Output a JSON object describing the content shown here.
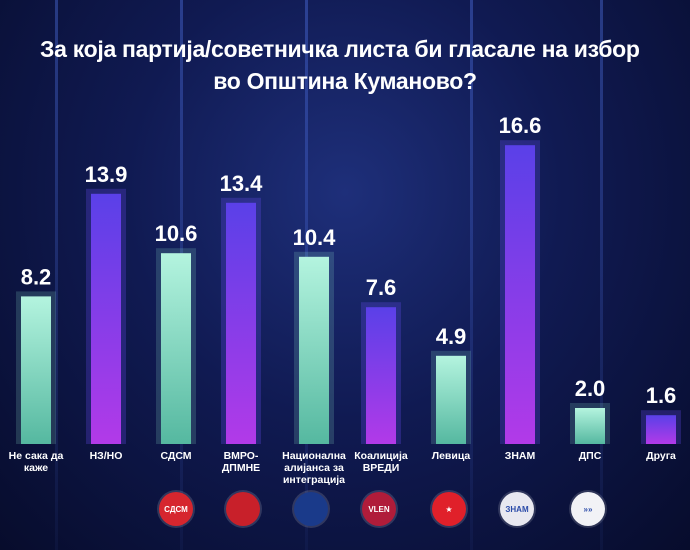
{
  "title_line1": "За која партија/советничка листа би гласале на избор",
  "title_line2": "во Општина Куманово?",
  "chart_data": {
    "type": "bar",
    "title": "За која партија/советничка листа би гласале на избор во Општина Куманово?",
    "categories": [
      [
        "Не сака да",
        "каже"
      ],
      [
        "НЗ/НО"
      ],
      [
        "СДСМ"
      ],
      [
        "ВМРО-",
        "ДПМНЕ"
      ],
      [
        "Национална",
        "алијанса за",
        "интеграција"
      ],
      [
        "Коалиција",
        "ВРЕДИ"
      ],
      [
        "Левица"
      ],
      [
        "ЗНАМ"
      ],
      [
        "ДПС"
      ],
      [
        "Друга"
      ]
    ],
    "values": [
      8.2,
      13.9,
      10.6,
      13.4,
      10.4,
      7.6,
      4.9,
      16.6,
      2.0,
      1.6
    ],
    "value_labels": [
      "8.2",
      "13.9",
      "10.6",
      "13.4",
      "10.4",
      "7.6",
      "4.9",
      "16.6",
      "2.0",
      "1.6"
    ],
    "bar_styles": [
      "mint",
      "violet",
      "mint",
      "violet",
      "mint",
      "violet",
      "mint",
      "violet",
      "mint",
      "violet"
    ],
    "ylim": [
      0,
      17.5
    ],
    "grid": false,
    "colors": {
      "mint_top": "#b4f4df",
      "mint_bottom": "#55b8a0",
      "violet_top": "#5a40e8",
      "violet_bottom": "#b23ae8",
      "label": "#ffffff"
    }
  },
  "logos": [
    {
      "label": "СДСМ",
      "color": "#d6262e",
      "icon": "sdsm-logo-icon"
    },
    {
      "label": "",
      "color": "#c8202a",
      "icon": "vmro-lion-logo-icon"
    },
    {
      "label": "",
      "color": "#1a3a8a",
      "icon": "nai-logo-icon"
    },
    {
      "label": "VLEN",
      "color": "#b01c3a",
      "icon": "vlen-logo-icon"
    },
    {
      "label": "★",
      "color": "#e0202a",
      "icon": "levica-star-logo-icon"
    },
    {
      "label": "ЗНАМ",
      "color": "#e8e8f0",
      "icon": "znam-logo-icon"
    },
    {
      "label": "»»",
      "color": "#f2f2f6",
      "icon": "dps-logo-icon"
    }
  ]
}
